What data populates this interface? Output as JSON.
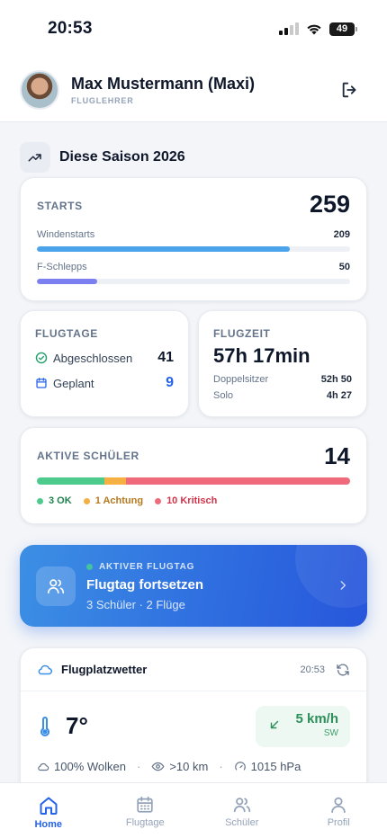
{
  "status_bar": {
    "time": "20:53",
    "battery": "49"
  },
  "profile": {
    "name": "Max Mustermann (Maxi)",
    "role": "FLUGLEHRER"
  },
  "section": {
    "title": "Diese Saison 2026"
  },
  "starts": {
    "label": "STARTS",
    "total": "259",
    "rows": [
      {
        "label": "Windenstarts",
        "value": "209",
        "fraction": 0.807,
        "color": "#4ba3ec"
      },
      {
        "label": "F-Schlepps",
        "value": "50",
        "fraction": 0.193,
        "color": "#7c7ff0"
      }
    ]
  },
  "flugtage": {
    "label": "FLUGTAGE",
    "completed_label": "Abgeschlossen",
    "completed_value": "41",
    "planned_label": "Geplant",
    "planned_value": "9",
    "planned_color": "#2563eb"
  },
  "flugzeit": {
    "label": "FLUGZEIT",
    "total": "57h 17min",
    "rows": [
      {
        "label": "Doppelsitzer",
        "value": "52h 50"
      },
      {
        "label": "Solo",
        "value": "4h 27"
      }
    ]
  },
  "schueler": {
    "label": "AKTIVE SCHÜLER",
    "total": "14",
    "segments": [
      {
        "label": "3 OK",
        "count": 3,
        "color": "#4ccb8c",
        "text_color": "#23804f"
      },
      {
        "label": "1 Achtung",
        "count": 1,
        "color": "#f5b041",
        "text_color": "#b7791f"
      },
      {
        "label": "10 Kritisch",
        "count": 10,
        "color": "#ef6b7b",
        "text_color": "#d6334a"
      }
    ]
  },
  "active_flight_day": {
    "kicker": "AKTIVER FLUGTAG",
    "title": "Flugtag fortsetzen",
    "subtitle": "3 Schüler · 2 Flüge"
  },
  "weather": {
    "title": "Flugplatzwetter",
    "updated": "20:53",
    "temperature": "7°",
    "wind_speed": "5 km/h",
    "wind_dir": "SW",
    "clouds": "100% Wolken",
    "visibility": ">10 km",
    "pressure": "1015 hPa"
  },
  "tabs": [
    {
      "label": "Home",
      "icon": "home-icon",
      "active": true
    },
    {
      "label": "Flugtage",
      "icon": "calendar-icon",
      "active": false
    },
    {
      "label": "Schüler",
      "icon": "users-icon",
      "active": false
    },
    {
      "label": "Profil",
      "icon": "user-icon",
      "active": false
    }
  ],
  "colors": {
    "accent": "#2563eb",
    "ok": "#4ccb8c",
    "warn": "#f5b041",
    "critical": "#ef6b7b"
  }
}
